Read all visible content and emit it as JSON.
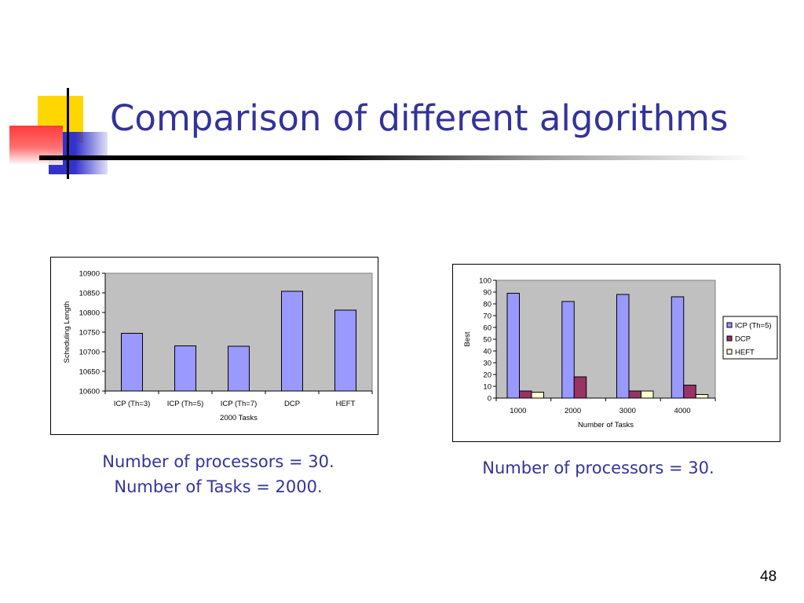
{
  "slide": {
    "title": "Comparison of different algorithms",
    "page_number": "48",
    "captions": [
      [
        "Number of processors = 30.",
        "Number of Tasks = 2000."
      ],
      [
        "Number of processors = 30."
      ]
    ]
  },
  "colors": {
    "title": "#33339a",
    "plot_bg": "#c0c0c0",
    "bar_blue": "#9999ff",
    "bar_maroon": "#993366",
    "bar_cream": "#ffffcc",
    "deco_yellow": "#ffd700",
    "deco_red": "#ff3b3b",
    "deco_blue": "#3333cc"
  },
  "chart_data": [
    {
      "type": "bar",
      "categories": [
        "ICP (Th=3)",
        "ICP (Th=5)",
        "ICP (Th=7)",
        "DCP",
        "HEFT"
      ],
      "values": [
        10747,
        10715,
        10714,
        10854,
        10806
      ],
      "xlabel": "2000 Tasks",
      "ylabel": "Scheduling Length",
      "ylim": [
        10600,
        10900
      ],
      "yticks": [
        10600,
        10650,
        10700,
        10750,
        10800,
        10850,
        10900
      ],
      "grid": false,
      "legend": "none"
    },
    {
      "type": "bar",
      "categories": [
        "1000",
        "2000",
        "3000",
        "4000"
      ],
      "series": [
        {
          "name": "ICP (Th=5)",
          "values": [
            89,
            82,
            88,
            86
          ]
        },
        {
          "name": "DCP",
          "values": [
            6,
            18,
            6,
            11
          ]
        },
        {
          "name": "HEFT",
          "values": [
            5,
            0,
            6,
            3
          ]
        }
      ],
      "xlabel": "Number of Tasks",
      "ylabel": "Best",
      "ylim": [
        0,
        100
      ],
      "yticks": [
        0,
        10,
        20,
        30,
        40,
        50,
        60,
        70,
        80,
        90,
        100
      ],
      "grid": false,
      "legend": "right"
    }
  ]
}
